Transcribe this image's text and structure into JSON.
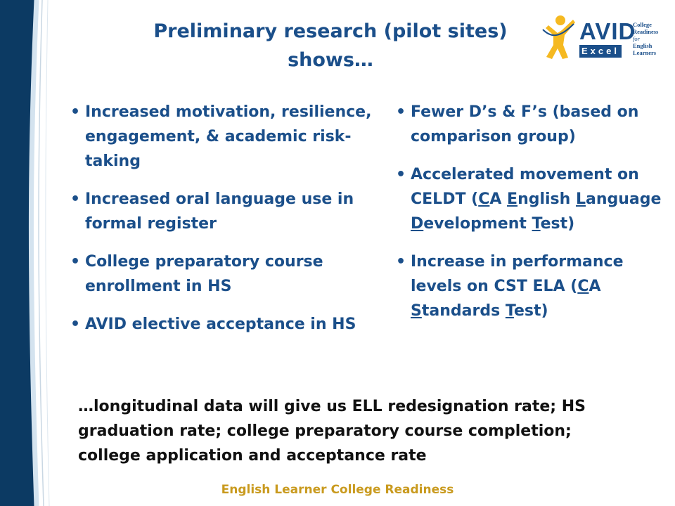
{
  "colors": {
    "title": "#1b4f8a",
    "band_dark": "#0c3a63",
    "band_light": "#d4e3ef",
    "closing_text": "#111111",
    "footer": "#c99a1e",
    "logo_figure": "#f5b921"
  },
  "title": {
    "line1": "Preliminary research (pilot sites)",
    "line2": "shows…"
  },
  "logo": {
    "brand": "AVID",
    "sub": "Excel",
    "tagline": {
      "line1": "College",
      "line2": "Readiness",
      "line3": "for",
      "line4": "English",
      "line5": "Learners"
    },
    "figure_icon": "person-star-icon"
  },
  "left_bullets": [
    {
      "text": "Increased motivation, resilience, engagement, & academic risk-taking"
    },
    {
      "text": "Increased oral language use in formal register"
    },
    {
      "text": "College preparatory course enrollment in HS"
    },
    {
      "text": "AVID elective acceptance in HS"
    }
  ],
  "right_bullets": [
    {
      "text": "Fewer D’s & F’s (based on comparison group)"
    },
    {
      "p1": "Accelerated movement on CELDT (",
      "u1": "C",
      "p2": "A ",
      "u2": "E",
      "p3": "nglish ",
      "u3": "L",
      "p4": "anguage ",
      "u4": "D",
      "p5": "evelopment ",
      "u5": "T",
      "p6": "est)"
    },
    {
      "p1": "Increase in performance levels on CST ELA (",
      "u1": "C",
      "p2": "A ",
      "u2": "S",
      "p3": "tandards ",
      "u3": "T",
      "p4": "est)"
    }
  ],
  "bullet_glyph": "•",
  "closing": "…longitudinal data will give us ELL redesignation rate; HS graduation rate; college preparatory course completion; college application and acceptance rate",
  "footer": "English Learner College Readiness"
}
